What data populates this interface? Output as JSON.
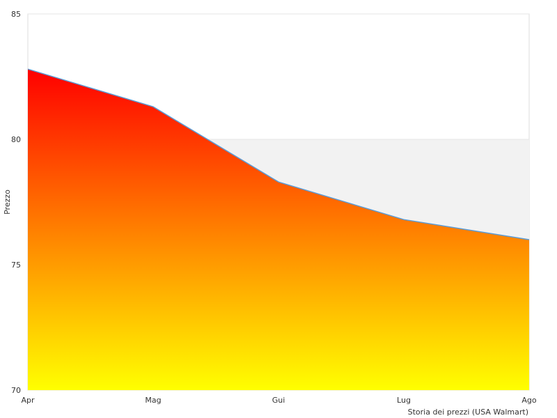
{
  "chart_data": {
    "type": "area",
    "title": "",
    "ylabel": "Prezzo",
    "xlabel": "Storia dei prezzi (USA Walmart)",
    "categories": [
      "Apr",
      "Mag",
      "Gui",
      "Lug",
      "Ago"
    ],
    "series": [
      {
        "values": [
          82.8,
          81.3,
          78.3,
          76.8,
          76.0
        ]
      }
    ],
    "ylim": [
      70,
      85
    ],
    "yticks": [
      "70",
      "75",
      "80",
      "85"
    ],
    "grid": true,
    "colors": {
      "line": "#5b9bd5",
      "fill_top": "#ff0000",
      "fill_bottom": "#ffff00",
      "band": "#f2f2f2",
      "frame": "#dddddd"
    }
  }
}
